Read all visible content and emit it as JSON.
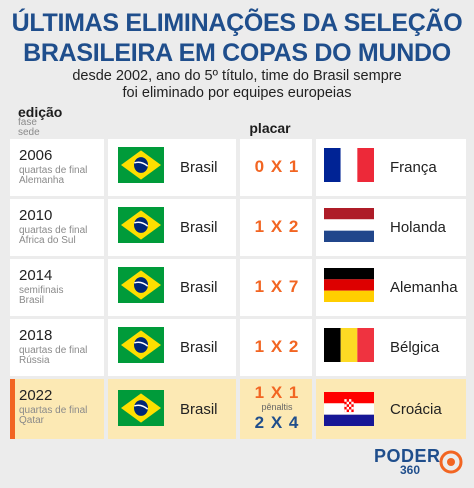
{
  "header": {
    "title_line1": "ÚLTIMAS ELIMINAÇÕES DA SELEÇÃO",
    "title_line2": "BRASILEIRA EM COPAS DO MUNDO",
    "subtitle_line1": "desde 2002, ano do 5º título, time do Brasil sempre",
    "subtitle_line2": "foi eliminado por equipes europeias"
  },
  "columns": {
    "edicao": "edição",
    "fase": "fase",
    "sede": "sede",
    "placar": "placar"
  },
  "rows": [
    {
      "year": "2006",
      "phase": "quartas de final",
      "host": "Alemanha",
      "team": "Brasil",
      "score": "0 X 1",
      "opponent": "França",
      "opponent_flag": "france-flag"
    },
    {
      "year": "2010",
      "phase": "quartas de final",
      "host": "África do Sul",
      "team": "Brasil",
      "score": "1 X 2",
      "opponent": "Holanda",
      "opponent_flag": "netherlands-flag"
    },
    {
      "year": "2014",
      "phase": "semifinais",
      "host": "Brasil",
      "team": "Brasil",
      "score": "1 X 7",
      "opponent": "Alemanha",
      "opponent_flag": "germany-flag"
    },
    {
      "year": "2018",
      "phase": "quartas de final",
      "host": "Rússia",
      "team": "Brasil",
      "score": "1 X 2",
      "opponent": "Bélgica",
      "opponent_flag": "belgium-flag"
    },
    {
      "year": "2022",
      "phase": "quartas de final",
      "host": "Qatar",
      "team": "Brasil",
      "score": "1 X 1",
      "penalties_label": "pênaltis",
      "penalties_score": "2 X 4",
      "opponent": "Croácia",
      "opponent_flag": "croatia-flag"
    }
  ],
  "logo": {
    "main": "PODER",
    "sub": "360"
  },
  "colors": {
    "title": "#1f4e8c",
    "score": "#f26522",
    "highlight_row": "#fce9b4",
    "background": "#ececec"
  }
}
